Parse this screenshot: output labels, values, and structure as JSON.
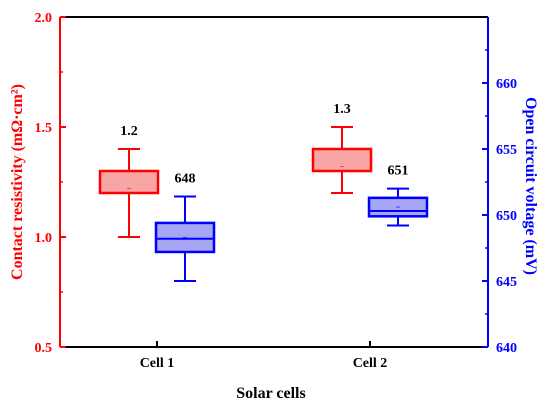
{
  "chart_data": {
    "type": "box",
    "xlabel": "Solar cells",
    "categories": [
      "Cell 1",
      "Cell 2"
    ],
    "left_axis": {
      "label": "Contact resistivity (mΩ·cm²)",
      "range": [
        0.5,
        2.0
      ],
      "ticks": [
        "0.5",
        "1.0",
        "1.5",
        "2.0"
      ],
      "color": "#ff0000"
    },
    "right_axis": {
      "label": "Open circuit voltage (mV)",
      "range": [
        640,
        665
      ],
      "ticks": [
        "640",
        "645",
        "650",
        "655",
        "660"
      ],
      "color": "#0000ff"
    },
    "series": [
      {
        "axis": "left",
        "color": "#ff0000",
        "fill": "#f7a6a6",
        "boxes": [
          {
            "category": "Cell 1",
            "min": 1.0,
            "q1": 1.2,
            "median": 1.2,
            "mean": 1.22,
            "q3": 1.3,
            "max": 1.4,
            "label": "1.2"
          },
          {
            "category": "Cell 2",
            "min": 1.2,
            "q1": 1.3,
            "median": 1.3,
            "mean": 1.32,
            "q3": 1.4,
            "max": 1.5,
            "label": "1.3"
          }
        ]
      },
      {
        "axis": "right",
        "color": "#0000ff",
        "fill": "#a6a6f5",
        "boxes": [
          {
            "category": "Cell 1",
            "min": 645,
            "q1": 647.2,
            "median": 648.2,
            "mean": 648.3,
            "q3": 649.4,
            "max": 651.4,
            "label": "648"
          },
          {
            "category": "Cell 2",
            "min": 649.2,
            "q1": 649.9,
            "median": 650.3,
            "mean": 650.6,
            "q3": 651.3,
            "max": 652.0,
            "label": "651"
          }
        ]
      }
    ]
  }
}
